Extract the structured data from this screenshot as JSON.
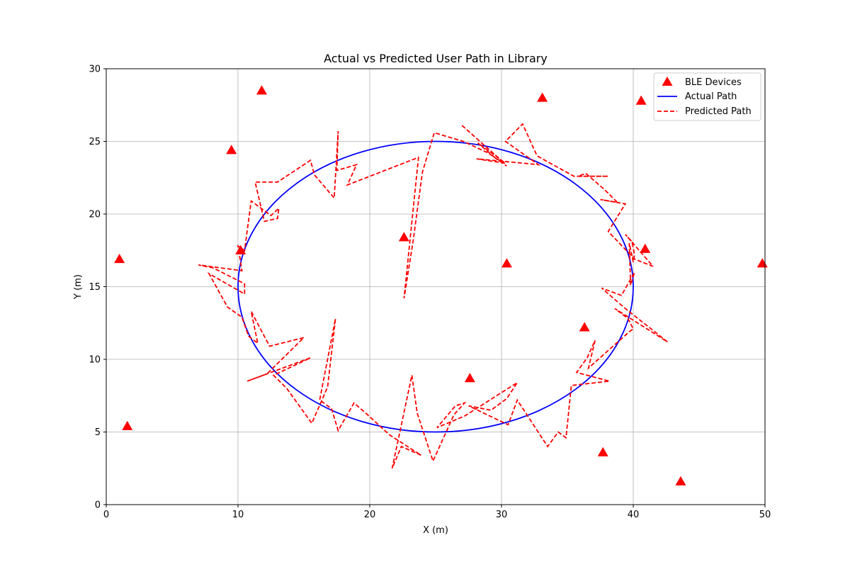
{
  "chart_data": {
    "type": "scatter",
    "title": "Actual vs Predicted User Path in Library",
    "xlabel": "X (m)",
    "ylabel": "Y (m)",
    "xlim": [
      0,
      50
    ],
    "ylim": [
      0,
      30
    ],
    "xticks": [
      0,
      10,
      20,
      30,
      40,
      50
    ],
    "yticks": [
      0,
      5,
      10,
      15,
      20,
      25,
      30
    ],
    "grid": true,
    "legend_position": "top-right",
    "series": [
      {
        "name": "BLE Devices",
        "kind": "scatter",
        "marker": "triangle",
        "color": "#ff0000",
        "points": [
          [
            1.0,
            16.9
          ],
          [
            1.6,
            5.4
          ],
          [
            9.5,
            24.4
          ],
          [
            10.2,
            17.5
          ],
          [
            11.8,
            28.5
          ],
          [
            22.6,
            18.4
          ],
          [
            27.6,
            8.7
          ],
          [
            30.4,
            16.6
          ],
          [
            33.1,
            28.0
          ],
          [
            36.3,
            12.2
          ],
          [
            37.7,
            3.6
          ],
          [
            40.6,
            27.8
          ],
          [
            40.9,
            17.6
          ],
          [
            43.6,
            1.6
          ],
          [
            49.8,
            16.6
          ]
        ]
      },
      {
        "name": "Actual Path",
        "kind": "ellipse",
        "color": "#0000ff",
        "style": "solid",
        "center": [
          25,
          15
        ],
        "radius_x": 15,
        "radius_y": 10
      },
      {
        "name": "Predicted Path",
        "kind": "line",
        "color": "#ff0000",
        "style": "dashed",
        "points": [
          [
            27.0,
            26.1
          ],
          [
            30.1,
            23.6
          ],
          [
            29.6,
            23.8
          ],
          [
            28.2,
            24.9
          ],
          [
            30.3,
            23.5
          ],
          [
            28.1,
            23.8
          ],
          [
            32.8,
            23.4
          ],
          [
            30.3,
            25.0
          ],
          [
            31.6,
            26.2
          ],
          [
            32.7,
            24.0
          ],
          [
            35.5,
            22.6
          ],
          [
            38.1,
            22.6
          ],
          [
            35.8,
            22.6
          ],
          [
            36.4,
            22.8
          ],
          [
            37.8,
            21.7
          ],
          [
            38.8,
            20.8
          ],
          [
            37.5,
            21.0
          ],
          [
            39.4,
            20.7
          ],
          [
            38.1,
            18.8
          ],
          [
            40.1,
            16.9
          ],
          [
            41.5,
            16.4
          ],
          [
            39.4,
            18.6
          ],
          [
            39.9,
            18.1
          ],
          [
            40.1,
            17.2
          ],
          [
            40.0,
            16.7
          ],
          [
            39.7,
            18.0
          ],
          [
            39.8,
            15.1
          ],
          [
            40.1,
            16.0
          ],
          [
            39.1,
            14.4
          ],
          [
            37.6,
            14.9
          ],
          [
            39.4,
            13.5
          ],
          [
            42.6,
            11.2
          ],
          [
            38.6,
            13.5
          ],
          [
            39.6,
            12.8
          ],
          [
            40.0,
            12.1
          ],
          [
            39.7,
            11.9
          ],
          [
            36.6,
            9.4
          ],
          [
            37.1,
            11.3
          ],
          [
            36.5,
            10.1
          ],
          [
            35.7,
            9.1
          ],
          [
            38.2,
            8.5
          ],
          [
            35.3,
            8.2
          ],
          [
            34.9,
            4.6
          ],
          [
            34.3,
            5.0
          ],
          [
            33.5,
            4.0
          ],
          [
            31.2,
            7.2
          ],
          [
            30.5,
            5.5
          ],
          [
            27.5,
            6.8
          ],
          [
            29.2,
            6.5
          ],
          [
            30.4,
            7.3
          ],
          [
            31.2,
            8.4
          ],
          [
            27.2,
            6.1
          ],
          [
            25.1,
            5.3
          ],
          [
            26.5,
            6.8
          ],
          [
            27.2,
            7.0
          ],
          [
            26.4,
            6.2
          ],
          [
            24.8,
            3.0
          ],
          [
            23.6,
            6.3
          ],
          [
            23.2,
            8.9
          ],
          [
            21.7,
            2.5
          ],
          [
            22.4,
            4.0
          ],
          [
            23.9,
            3.4
          ],
          [
            21.5,
            4.8
          ],
          [
            19.7,
            6.3
          ],
          [
            18.8,
            7.0
          ],
          [
            17.6,
            5.1
          ],
          [
            17.1,
            6.6
          ],
          [
            16.2,
            7.2
          ],
          [
            17.4,
            12.8
          ],
          [
            16.8,
            8.1
          ],
          [
            15.6,
            5.6
          ],
          [
            13.7,
            8.0
          ],
          [
            12.7,
            8.9
          ],
          [
            15.5,
            10.1
          ],
          [
            10.7,
            8.5
          ],
          [
            12.2,
            9.0
          ],
          [
            15.0,
            11.5
          ],
          [
            12.4,
            10.9
          ],
          [
            11.0,
            13.3
          ],
          [
            11.5,
            11.1
          ],
          [
            10.8,
            11.6
          ],
          [
            10.3,
            12.9
          ],
          [
            9.2,
            13.6
          ],
          [
            7.8,
            15.9
          ],
          [
            10.5,
            14.5
          ],
          [
            10.5,
            15.2
          ],
          [
            8.1,
            16.3
          ],
          [
            7.0,
            16.5
          ],
          [
            10.3,
            16.1
          ],
          [
            10.0,
            17.8
          ],
          [
            10.5,
            17.5
          ],
          [
            11.0,
            20.9
          ],
          [
            11.6,
            20.5
          ],
          [
            12.5,
            19.9
          ],
          [
            13.1,
            20.4
          ],
          [
            13.0,
            19.7
          ],
          [
            12.0,
            19.5
          ],
          [
            11.3,
            22.2
          ],
          [
            13.0,
            22.2
          ],
          [
            15.5,
            23.7
          ],
          [
            15.8,
            22.7
          ],
          [
            17.3,
            21.1
          ],
          [
            17.6,
            25.7
          ],
          [
            17.5,
            23.0
          ],
          [
            19.0,
            23.4
          ],
          [
            18.3,
            22.0
          ],
          [
            23.7,
            23.9
          ],
          [
            22.6,
            14.2
          ],
          [
            23.3,
            18.2
          ],
          [
            24.0,
            22.9
          ],
          [
            24.9,
            25.6
          ],
          [
            26.0,
            25.3
          ],
          [
            27.1,
            25.0
          ],
          [
            29.0,
            24.2
          ],
          [
            30.4,
            23.3
          ]
        ]
      }
    ]
  }
}
